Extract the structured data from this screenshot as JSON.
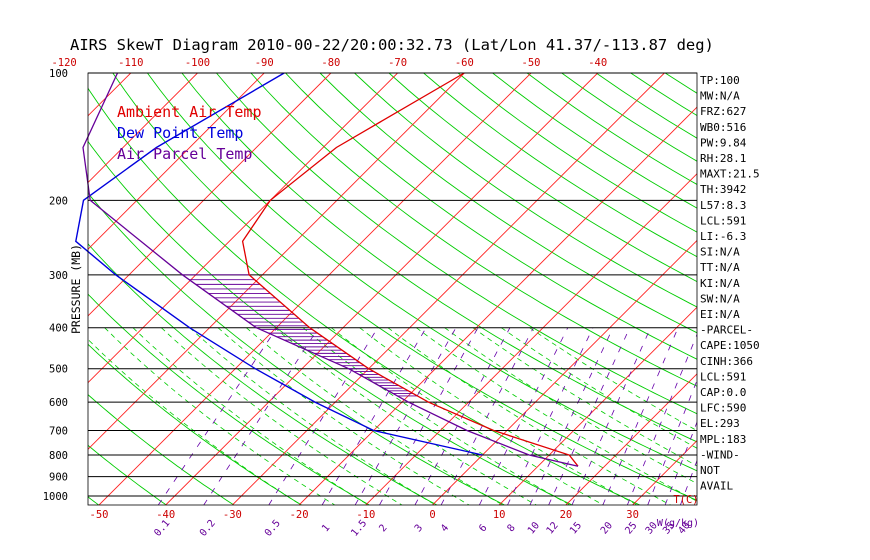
{
  "title": "AIRS SkewT Diagram 2010-00-22/20:00:32.73 (Lat/Lon 41.37/-113.87 deg)",
  "ylabel": "PRESSURE (MB)",
  "legend": [
    {
      "label": "Ambient Air Temp",
      "color": "#e00000"
    },
    {
      "label": "Dew Point Temp",
      "color": "#0000dd"
    },
    {
      "label": "Air Parcel Temp",
      "color": "#660099"
    }
  ],
  "chart_data": {
    "type": "line",
    "pressure_levels": [
      100,
      200,
      300,
      400,
      500,
      600,
      700,
      800,
      900,
      1000
    ],
    "pressure_labels": [
      "100",
      "200",
      "300",
      "400",
      "500",
      "600",
      "700",
      "800",
      "900",
      "1000"
    ],
    "top_temp_ticks": [
      -120,
      -110,
      -100,
      -90,
      -80,
      -70,
      -60,
      -50,
      -40
    ],
    "top_temp_labels": [
      "-120",
      "-110",
      "-100",
      "-90",
      "-80",
      "-70",
      "-60",
      "-50",
      "-40"
    ],
    "bottom_temp_ticks": [
      -50,
      -40,
      -30,
      -20,
      -10,
      0,
      10,
      20,
      30
    ],
    "bottom_temp_labels": [
      "-50",
      "-40",
      "-30",
      "-20",
      "-10",
      "0",
      "10",
      "20",
      "30"
    ],
    "bottom_temp_unit": "T(C)",
    "mixing_ratio_labels": [
      "0.1",
      "0.2",
      "0.5",
      "1",
      "1.5",
      "2",
      "3",
      "4",
      "6",
      "8",
      "10",
      "12",
      "15",
      "20",
      "25",
      "30",
      "35",
      "40"
    ],
    "mixing_ratio_unit": "W(g/kg)",
    "series": [
      {
        "name": "Ambient Air Temp",
        "color": "#e00000",
        "points": [
          [
            100,
            -60
          ],
          [
            150,
            -68
          ],
          [
            200,
            -70
          ],
          [
            250,
            -68
          ],
          [
            300,
            -62
          ],
          [
            400,
            -45
          ],
          [
            500,
            -30
          ],
          [
            600,
            -16
          ],
          [
            700,
            -2
          ],
          [
            800,
            13
          ],
          [
            850,
            16
          ]
        ]
      },
      {
        "name": "Dew Point Temp",
        "color": "#0000dd",
        "points": [
          [
            100,
            -87
          ],
          [
            150,
            -95
          ],
          [
            200,
            -98
          ],
          [
            250,
            -93
          ],
          [
            300,
            -82
          ],
          [
            400,
            -63
          ],
          [
            500,
            -47
          ],
          [
            600,
            -33
          ],
          [
            700,
            -20
          ],
          [
            800,
            0
          ]
        ]
      },
      {
        "name": "Air Parcel Temp",
        "color": "#660099",
        "points": [
          [
            850,
            16
          ],
          [
            800,
            7
          ],
          [
            700,
            -6
          ],
          [
            600,
            -19
          ],
          [
            500,
            -33
          ],
          [
            400,
            -53
          ],
          [
            300,
            -72
          ],
          [
            200,
            -97
          ],
          [
            150,
            -106
          ],
          [
            100,
            -112
          ]
        ]
      }
    ],
    "cape_region": {
      "p_top": 300,
      "p_bottom": 580
    }
  },
  "indices": [
    "TP:100",
    "MW:N/A",
    "FRZ:627",
    "WB0:516",
    "PW:9.84",
    "RH:28.1",
    "MAXT:21.5",
    "TH:3942",
    "L57:8.3",
    "LCL:591",
    "LI:-6.3",
    "SI:N/A",
    "TT:N/A",
    "KI:N/A",
    "SW:N/A",
    "EI:N/A",
    "-PARCEL-",
    "CAPE:1050",
    "CINH:366",
    "LCL:591",
    "CAP:0.0",
    "LFC:590",
    "EL:293",
    "MPL:183",
    "-WIND-",
    "NOT",
    "AVAIL"
  ]
}
